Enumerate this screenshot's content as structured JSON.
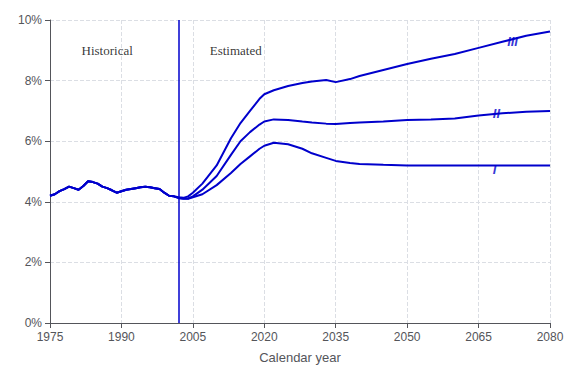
{
  "chart_data": {
    "type": "line",
    "xlabel": "Calendar year",
    "color": "#0000CC",
    "grid": true,
    "xlim": [
      1975,
      2080
    ],
    "xticks": [
      1975,
      1990,
      2005,
      2020,
      2035,
      2050,
      2065,
      2080
    ],
    "ylim": [
      0,
      10
    ],
    "yticks": [
      {
        "value": 0,
        "label": "0%"
      },
      {
        "value": 2,
        "label": "2%"
      },
      {
        "value": 4,
        "label": "4%"
      },
      {
        "value": 6,
        "label": "6%"
      },
      {
        "value": 8,
        "label": "8%"
      },
      {
        "value": 10,
        "label": "10%"
      }
    ],
    "divider_x": 2002,
    "x": [
      1975,
      1976,
      1977,
      1978,
      1979,
      1980,
      1981,
      1982,
      1983,
      1984,
      1985,
      1986,
      1987,
      1988,
      1989,
      1990,
      1991,
      1992,
      1993,
      1994,
      1995,
      1996,
      1997,
      1998,
      1999,
      2000,
      2001,
      2002,
      2003,
      2004,
      2005,
      2007,
      2010,
      2013,
      2015,
      2017,
      2019,
      2020,
      2022,
      2025,
      2028,
      2030,
      2033,
      2035,
      2038,
      2040,
      2045,
      2050,
      2055,
      2060,
      2065,
      2070,
      2075,
      2080
    ],
    "series": [
      {
        "values": [
          4.2,
          4.25,
          4.35,
          4.42,
          4.5,
          4.45,
          4.4,
          4.52,
          4.68,
          4.65,
          4.6,
          4.5,
          4.45,
          4.38,
          4.3,
          4.35,
          4.4,
          4.42,
          4.45,
          4.48,
          4.5,
          4.48,
          4.45,
          4.42,
          4.3,
          4.2,
          4.18,
          4.12,
          4.1,
          4.1,
          4.15,
          4.25,
          4.55,
          4.95,
          5.25,
          5.5,
          5.75,
          5.85,
          5.95,
          5.9,
          5.75,
          5.6,
          5.45,
          5.35,
          5.28,
          5.25,
          5.22,
          5.2,
          5.2,
          5.2,
          5.2,
          5.2,
          5.2,
          5.2
        ]
      },
      {
        "values": [
          4.2,
          4.25,
          4.35,
          4.42,
          4.5,
          4.45,
          4.4,
          4.52,
          4.68,
          4.65,
          4.6,
          4.5,
          4.45,
          4.38,
          4.3,
          4.35,
          4.4,
          4.42,
          4.45,
          4.48,
          4.5,
          4.48,
          4.45,
          4.42,
          4.3,
          4.2,
          4.18,
          4.13,
          4.11,
          4.11,
          4.18,
          4.4,
          4.85,
          5.55,
          6.0,
          6.3,
          6.55,
          6.65,
          6.72,
          6.7,
          6.65,
          6.62,
          6.58,
          6.57,
          6.6,
          6.62,
          6.65,
          6.7,
          6.72,
          6.75,
          6.85,
          6.92,
          6.97,
          7.0
        ]
      },
      {
        "values": [
          4.2,
          4.25,
          4.35,
          4.42,
          4.5,
          4.45,
          4.4,
          4.52,
          4.68,
          4.65,
          4.6,
          4.5,
          4.45,
          4.38,
          4.3,
          4.35,
          4.4,
          4.42,
          4.45,
          4.48,
          4.5,
          4.48,
          4.45,
          4.42,
          4.3,
          4.2,
          4.18,
          4.15,
          4.13,
          4.18,
          4.3,
          4.6,
          5.2,
          6.1,
          6.6,
          7.0,
          7.4,
          7.55,
          7.68,
          7.82,
          7.92,
          7.97,
          8.02,
          7.95,
          8.05,
          8.15,
          8.35,
          8.55,
          8.72,
          8.88,
          9.08,
          9.28,
          9.48,
          9.62
        ]
      }
    ],
    "curve_labels": [
      {
        "text": "I",
        "x": 2068,
        "y": 5.05
      },
      {
        "text": "II",
        "x": 2068,
        "y": 6.92
      },
      {
        "text": "III",
        "x": 2071,
        "y": 9.3
      }
    ],
    "annotations": [
      {
        "text": "Historical",
        "x": 1987,
        "y": 9.2
      },
      {
        "text": "Estimated",
        "x": 2014,
        "y": 9.2
      }
    ]
  }
}
